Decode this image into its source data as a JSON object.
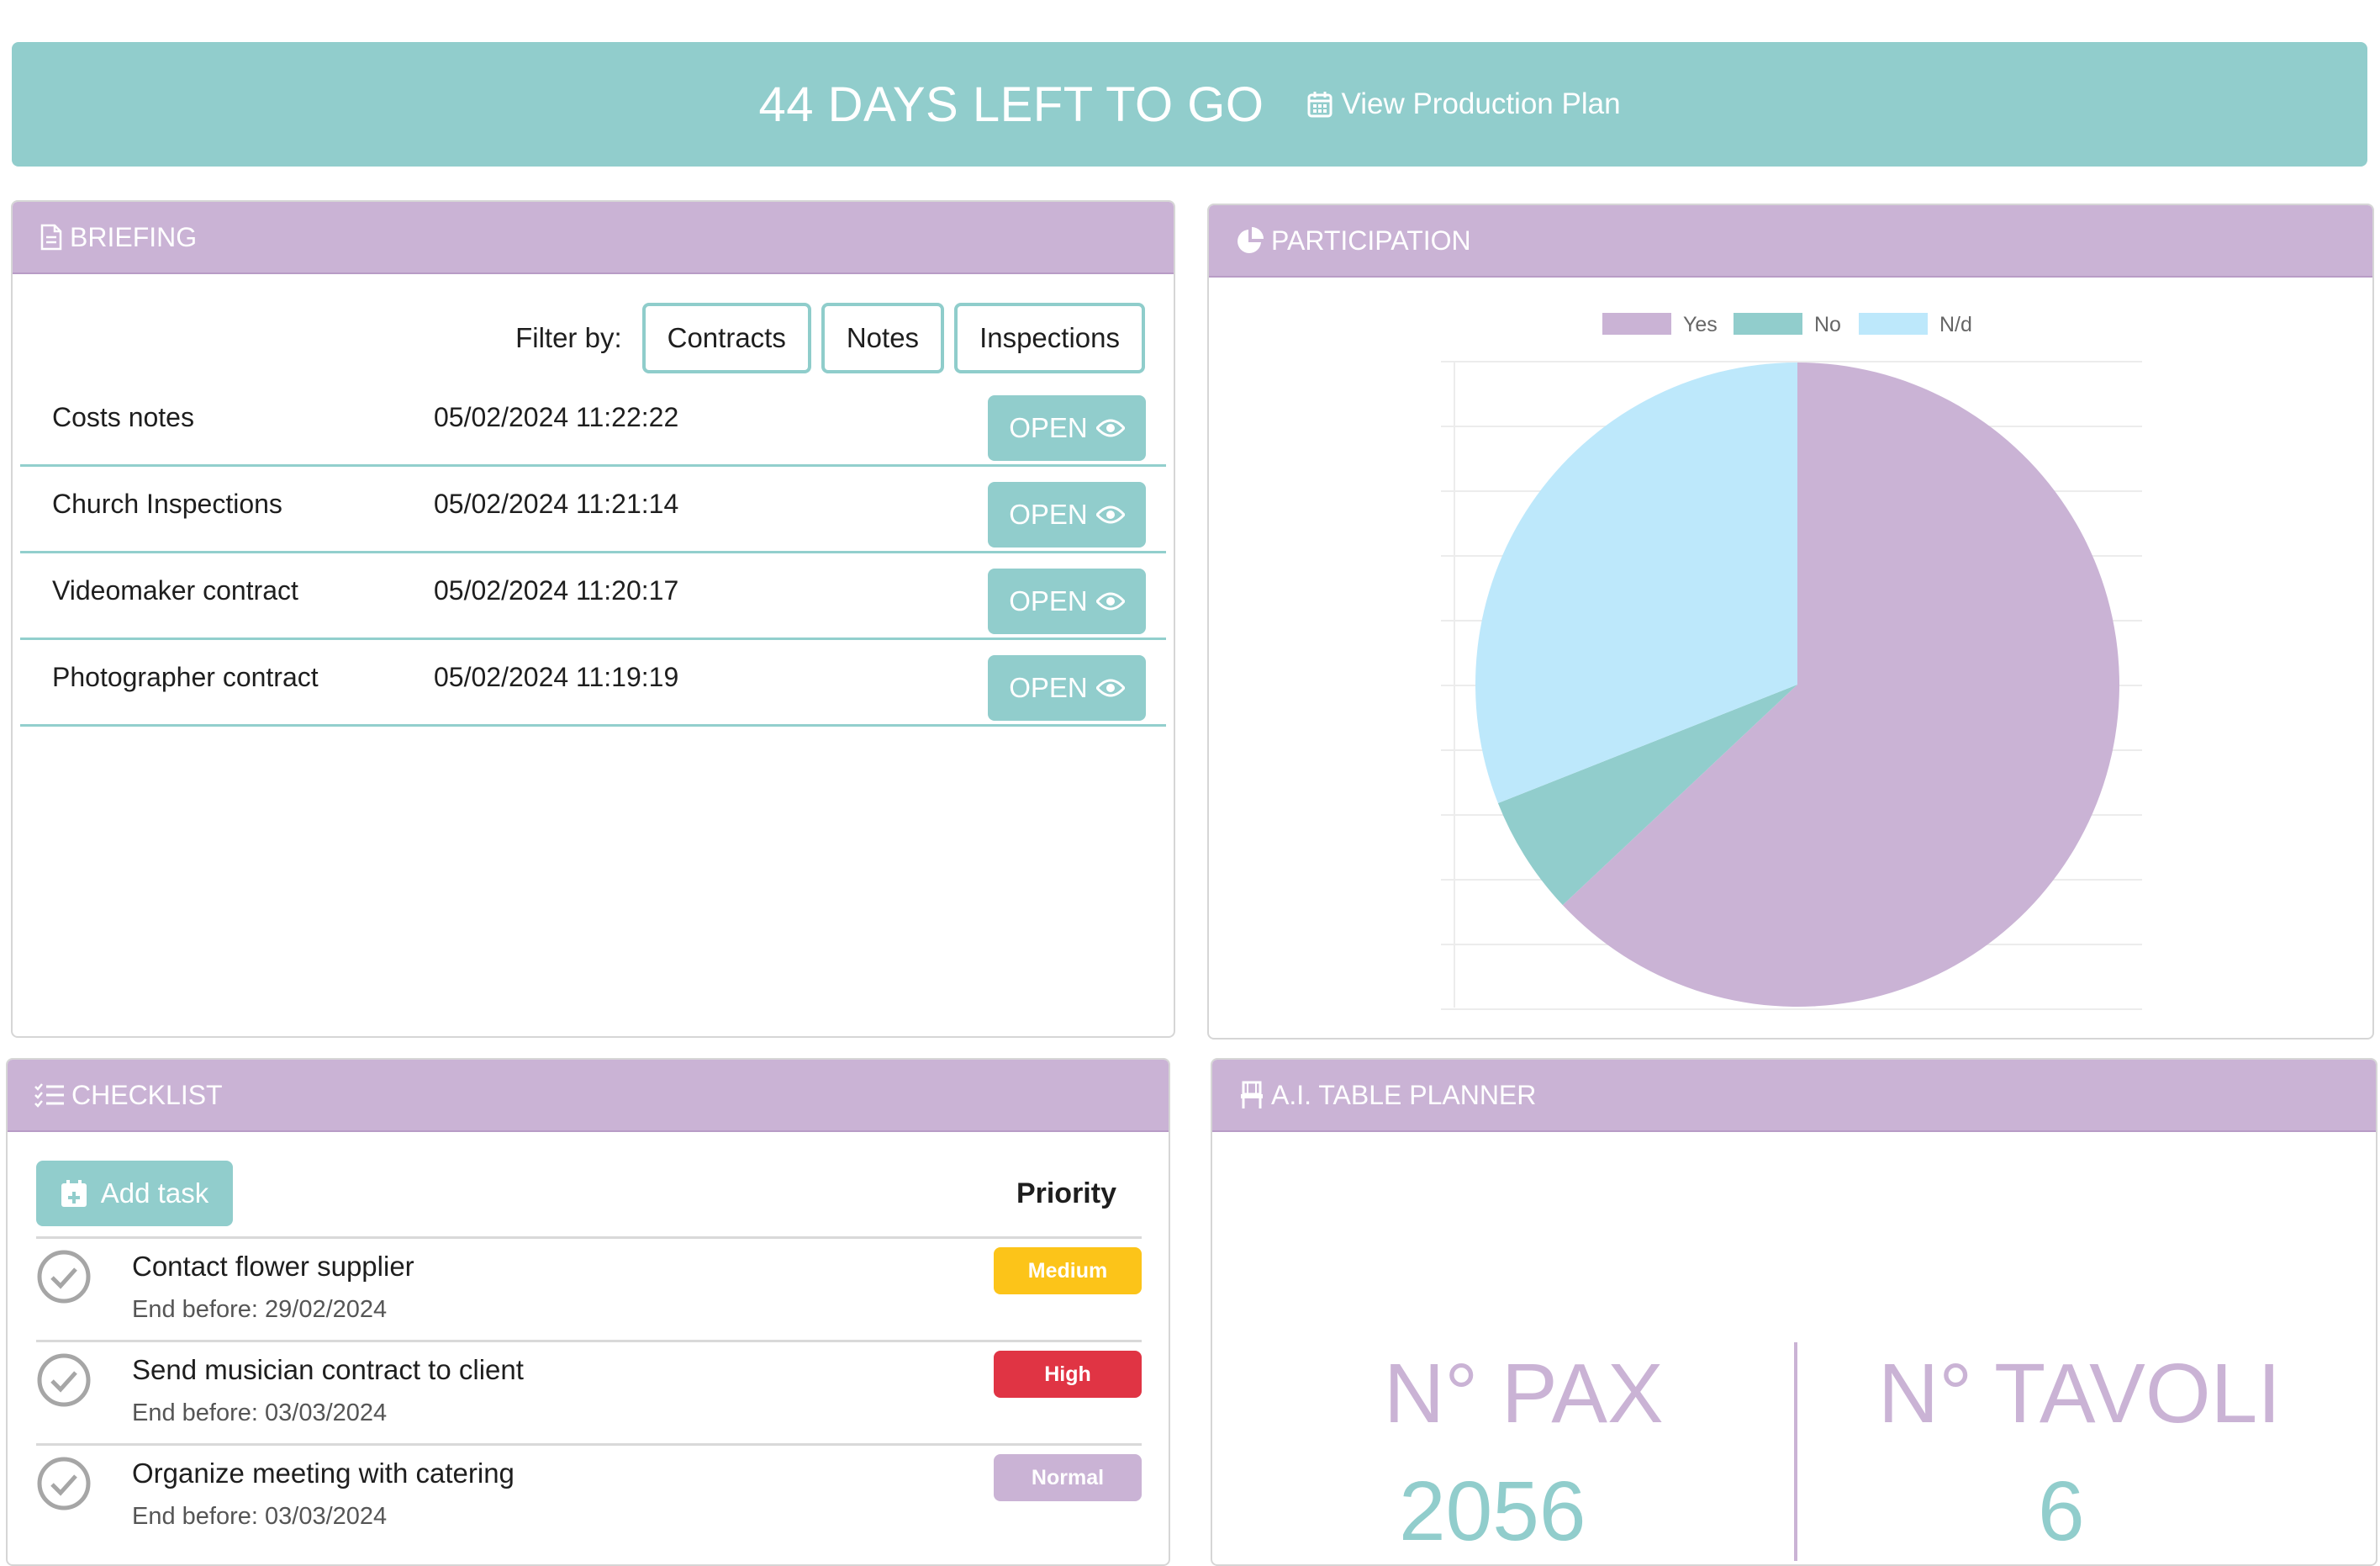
{
  "banner": {
    "countdown": "44 DAYS LEFT TO GO",
    "link_label": "View Production Plan"
  },
  "briefing": {
    "title": "BRIEFING",
    "filter_label": "Filter by:",
    "filters": [
      "Contracts",
      "Notes",
      "Inspections"
    ],
    "open_label": "OPEN",
    "rows": [
      {
        "name": "Costs notes",
        "date": "05/02/2024 11:22:22"
      },
      {
        "name": "Church Inspections",
        "date": "05/02/2024 11:21:14"
      },
      {
        "name": "Videomaker contract",
        "date": "05/02/2024 11:20:17"
      },
      {
        "name": "Photographer contract",
        "date": "05/02/2024 11:19:19"
      }
    ]
  },
  "participation": {
    "title": "PARTICIPATION"
  },
  "chart_data": {
    "type": "pie",
    "categories": [
      "Yes",
      "No",
      "N/d"
    ],
    "values": [
      63,
      6,
      31
    ],
    "colors": [
      "#cab3d5",
      "#91cdcc",
      "#bde8fb"
    ],
    "legend": "top"
  },
  "checklist": {
    "title": "CHECKLIST",
    "add_label": "Add task",
    "priority_label": "Priority",
    "items": [
      {
        "title": "Contact flower supplier",
        "end": "End before: 29/02/2024",
        "priority": "Medium",
        "color": "#fcc419"
      },
      {
        "title": "Send musician contract to client",
        "end": "End before: 03/03/2024",
        "priority": "High",
        "color": "#e03444"
      },
      {
        "title": "Organize meeting with catering",
        "end": "End before: 03/03/2024",
        "priority": "Normal",
        "color": "#cab3d5"
      }
    ]
  },
  "table_planner": {
    "title": "A.I. TABLE PLANNER",
    "pax_label": "N° PAX",
    "pax_value": "2056",
    "tables_label": "N° TAVOLI",
    "tables_value": "6"
  }
}
